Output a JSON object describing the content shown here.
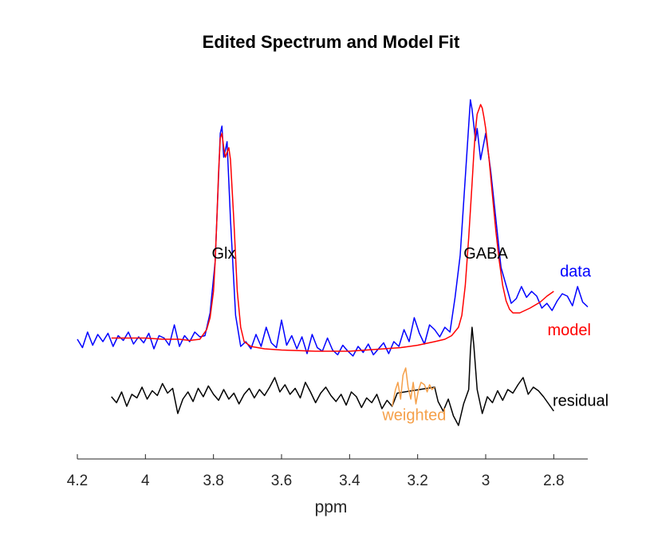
{
  "chart_data": {
    "type": "line",
    "title": "Edited Spectrum and Model Fit",
    "xlabel": "ppm",
    "ylabel": "",
    "xlim": [
      4.2,
      2.7
    ],
    "x_reversed": true,
    "x_ticks": [
      4.2,
      4.0,
      3.8,
      3.6,
      3.4,
      3.2,
      3.0,
      2.8
    ],
    "x_tick_labels": [
      "4.2",
      "4",
      "3.8",
      "3.6",
      "3.4",
      "3.2",
      "3",
      "2.8"
    ],
    "ylim": [
      -1.0,
      2.0
    ],
    "grid": false,
    "colors": {
      "data": "#0000ff",
      "model": "#ff0000",
      "residual": "#000000",
      "weighted": "#f5a04a"
    },
    "annotations": {
      "glx": {
        "text": "Glx",
        "x": 3.77,
        "y": 0.71
      },
      "gaba": {
        "text": "GABA",
        "x": 3.0,
        "y": 0.71
      },
      "data": {
        "text": "data",
        "x": 2.72,
        "y": 0.56
      },
      "model": {
        "text": "model",
        "x": 2.72,
        "y": 0.07
      },
      "residual": {
        "text": "residual",
        "x": 2.72,
        "y": -0.52
      },
      "weighted": {
        "text": "weighted",
        "x": 3.21,
        "y": -0.64
      }
    },
    "series": [
      {
        "name": "data",
        "color": "#0000ff",
        "x": [
          4.2,
          4.185,
          4.17,
          4.155,
          4.14,
          4.125,
          4.11,
          4.095,
          4.08,
          4.065,
          4.05,
          4.035,
          4.02,
          4.005,
          3.99,
          3.975,
          3.96,
          3.945,
          3.93,
          3.915,
          3.9,
          3.885,
          3.87,
          3.855,
          3.84,
          3.825,
          3.81,
          3.795,
          3.78,
          3.775,
          3.77,
          3.765,
          3.76,
          3.75,
          3.735,
          3.72,
          3.705,
          3.69,
          3.675,
          3.66,
          3.645,
          3.63,
          3.615,
          3.6,
          3.585,
          3.57,
          3.555,
          3.54,
          3.525,
          3.51,
          3.495,
          3.48,
          3.465,
          3.45,
          3.435,
          3.42,
          3.405,
          3.39,
          3.375,
          3.36,
          3.345,
          3.33,
          3.315,
          3.3,
          3.285,
          3.27,
          3.255,
          3.24,
          3.225,
          3.21,
          3.195,
          3.18,
          3.165,
          3.15,
          3.135,
          3.12,
          3.105,
          3.09,
          3.075,
          3.06,
          3.045,
          3.04,
          3.03,
          3.025,
          3.015,
          3.0,
          2.985,
          2.97,
          2.955,
          2.94,
          2.925,
          2.91,
          2.895,
          2.88,
          2.865,
          2.85,
          2.835,
          2.82,
          2.805,
          2.79,
          2.775,
          2.76,
          2.745,
          2.73,
          2.715,
          2.7
        ],
        "y": [
          0.0,
          -0.07,
          0.06,
          -0.05,
          0.04,
          -0.02,
          0.05,
          -0.06,
          0.03,
          -0.01,
          0.06,
          -0.04,
          0.02,
          -0.03,
          0.05,
          -0.08,
          0.03,
          0.01,
          -0.05,
          0.12,
          -0.06,
          0.03,
          -0.02,
          0.06,
          0.02,
          0.03,
          0.22,
          0.65,
          1.72,
          1.78,
          1.52,
          1.58,
          1.65,
          1.0,
          0.2,
          -0.06,
          -0.02,
          -0.08,
          0.04,
          -0.06,
          0.1,
          -0.03,
          -0.07,
          0.16,
          -0.05,
          0.03,
          -0.08,
          0.02,
          -0.12,
          0.04,
          -0.07,
          -0.1,
          0.01,
          -0.09,
          -0.13,
          -0.05,
          -0.1,
          -0.14,
          -0.06,
          -0.11,
          -0.04,
          -0.13,
          -0.08,
          -0.03,
          -0.12,
          -0.02,
          -0.06,
          0.08,
          -0.02,
          0.18,
          0.05,
          -0.04,
          0.12,
          0.08,
          0.02,
          0.1,
          0.06,
          0.35,
          0.7,
          1.35,
          2.0,
          1.92,
          1.66,
          1.76,
          1.5,
          1.72,
          1.4,
          1.0,
          0.6,
          0.45,
          0.3,
          0.34,
          0.44,
          0.35,
          0.4,
          0.36,
          0.26,
          0.3,
          0.24,
          0.32,
          0.38,
          0.36,
          0.28,
          0.44,
          0.31,
          0.27
        ]
      },
      {
        "name": "model",
        "color": "#ff0000",
        "x": [
          4.1,
          4.05,
          4.0,
          3.95,
          3.9,
          3.87,
          3.84,
          3.82,
          3.81,
          3.8,
          3.795,
          3.79,
          3.785,
          3.78,
          3.775,
          3.77,
          3.765,
          3.76,
          3.755,
          3.75,
          3.74,
          3.73,
          3.72,
          3.71,
          3.69,
          3.65,
          3.6,
          3.5,
          3.4,
          3.35,
          3.3,
          3.25,
          3.2,
          3.15,
          3.12,
          3.1,
          3.08,
          3.07,
          3.06,
          3.05,
          3.04,
          3.035,
          3.03,
          3.025,
          3.02,
          3.015,
          3.01,
          3.005,
          3.0,
          2.99,
          2.98,
          2.97,
          2.96,
          2.95,
          2.94,
          2.93,
          2.92,
          2.9,
          2.87,
          2.84,
          2.82,
          2.8
        ],
        "y": [
          0.01,
          0.01,
          0.01,
          0.0,
          0.0,
          -0.01,
          0.0,
          0.08,
          0.18,
          0.4,
          0.65,
          1.0,
          1.4,
          1.68,
          1.72,
          1.6,
          1.52,
          1.56,
          1.6,
          1.5,
          0.98,
          0.4,
          0.1,
          -0.02,
          -0.06,
          -0.08,
          -0.09,
          -0.1,
          -0.1,
          -0.09,
          -0.08,
          -0.07,
          -0.05,
          -0.02,
          0.0,
          0.03,
          0.1,
          0.2,
          0.45,
          0.85,
          1.3,
          1.55,
          1.75,
          1.88,
          1.92,
          1.96,
          1.93,
          1.85,
          1.76,
          1.5,
          1.2,
          0.9,
          0.65,
          0.45,
          0.32,
          0.25,
          0.22,
          0.22,
          0.26,
          0.31,
          0.36,
          0.4
        ]
      },
      {
        "name": "residual",
        "color": "#000000",
        "x": [
          4.1,
          4.085,
          4.07,
          4.055,
          4.04,
          4.025,
          4.01,
          3.995,
          3.98,
          3.965,
          3.95,
          3.935,
          3.92,
          3.905,
          3.89,
          3.875,
          3.86,
          3.845,
          3.83,
          3.815,
          3.8,
          3.785,
          3.77,
          3.755,
          3.74,
          3.725,
          3.71,
          3.695,
          3.68,
          3.665,
          3.65,
          3.635,
          3.62,
          3.605,
          3.59,
          3.575,
          3.56,
          3.545,
          3.53,
          3.515,
          3.5,
          3.485,
          3.47,
          3.455,
          3.44,
          3.425,
          3.41,
          3.395,
          3.38,
          3.365,
          3.35,
          3.335,
          3.32,
          3.305,
          3.29,
          3.275,
          3.26,
          3.15,
          3.14,
          3.125,
          3.11,
          3.095,
          3.08,
          3.065,
          3.05,
          3.045,
          3.04,
          3.035,
          3.025,
          3.01,
          2.995,
          2.98,
          2.965,
          2.95,
          2.935,
          2.92,
          2.905,
          2.89,
          2.875,
          2.86,
          2.845,
          2.83,
          2.815,
          2.8
        ],
        "y": [
          -0.48,
          -0.53,
          -0.44,
          -0.56,
          -0.46,
          -0.49,
          -0.4,
          -0.5,
          -0.43,
          -0.47,
          -0.37,
          -0.45,
          -0.41,
          -0.62,
          -0.5,
          -0.44,
          -0.52,
          -0.41,
          -0.48,
          -0.39,
          -0.46,
          -0.51,
          -0.42,
          -0.5,
          -0.45,
          -0.54,
          -0.46,
          -0.41,
          -0.49,
          -0.42,
          -0.47,
          -0.4,
          -0.32,
          -0.44,
          -0.38,
          -0.46,
          -0.41,
          -0.49,
          -0.36,
          -0.44,
          -0.53,
          -0.45,
          -0.4,
          -0.47,
          -0.52,
          -0.46,
          -0.55,
          -0.44,
          -0.48,
          -0.57,
          -0.49,
          -0.53,
          -0.46,
          -0.58,
          -0.51,
          -0.56,
          -0.45,
          -0.4,
          -0.52,
          -0.6,
          -0.5,
          -0.64,
          -0.72,
          -0.54,
          -0.42,
          -0.1,
          0.1,
          -0.05,
          -0.42,
          -0.62,
          -0.48,
          -0.53,
          -0.43,
          -0.51,
          -0.42,
          -0.45,
          -0.38,
          -0.32,
          -0.46,
          -0.4,
          -0.43,
          -0.48,
          -0.54,
          -0.6
        ]
      },
      {
        "name": "weighted",
        "color": "#f5a04a",
        "x": [
          3.275,
          3.265,
          3.258,
          3.25,
          3.243,
          3.235,
          3.228,
          3.22,
          3.213,
          3.205,
          3.198,
          3.19,
          3.18,
          3.172,
          3.165,
          3.158,
          3.15
        ],
        "y": [
          -0.56,
          -0.42,
          -0.36,
          -0.5,
          -0.3,
          -0.24,
          -0.4,
          -0.5,
          -0.36,
          -0.54,
          -0.43,
          -0.36,
          -0.38,
          -0.44,
          -0.38,
          -0.42,
          -0.4
        ]
      }
    ]
  }
}
